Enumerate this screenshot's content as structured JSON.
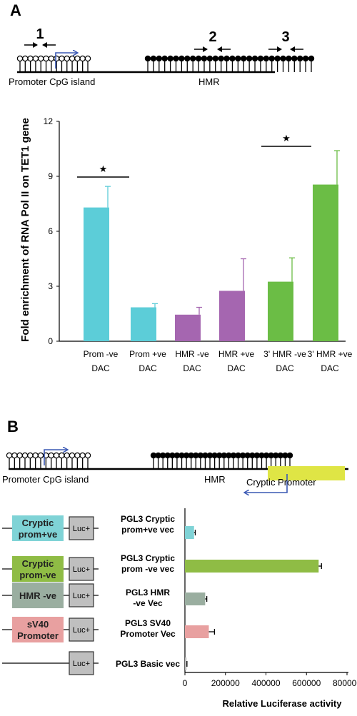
{
  "panel_a": {
    "label": "A",
    "marker_labels": [
      "1",
      "2",
      "3"
    ],
    "promoter_label": "Promoter CpG island",
    "hmr_label": "HMR"
  },
  "panel_b": {
    "label": "B",
    "promoter_label": "Promoter CpG island",
    "hmr_label": "HMR",
    "cryptic_label": "Cryptic Promoter",
    "constructs": [
      {
        "box_lines": [
          "Cryptic",
          "prom+ve"
        ],
        "box_color": "#7fd3d6",
        "name_lines": [
          "PGL3 Cryptic",
          "prom+ve vec"
        ]
      },
      {
        "box_lines": [
          "Cryptic",
          "prom-ve"
        ],
        "box_color": "#8fbc45",
        "name_lines": [
          "PGL3 Cryptic",
          "prom -ve vec"
        ]
      },
      {
        "box_lines": [
          "HMR -ve"
        ],
        "box_color": "#9aaea0",
        "name_lines": [
          "PGL3 HMR",
          "-ve Vec"
        ]
      },
      {
        "box_lines": [
          "sV40",
          "Promoter"
        ],
        "box_color": "#e8a0a0",
        "name_lines": [
          "PGL3 SV40",
          "Promoter Vec"
        ]
      },
      {
        "box_lines": [],
        "box_color": null,
        "name_lines": [
          "PGL3 Basic vec"
        ]
      }
    ],
    "luc_label": "Luc+"
  },
  "colors": {
    "cyan": "#5ccdd8",
    "purple": "#a566b0",
    "green": "#6bbd45",
    "arrow_blue": "#3a58b4",
    "cryptic_yellow": "#dfe545"
  },
  "chart_data": [
    {
      "type": "bar",
      "ylabel": "Fold enrichment of RNA Pol II on TET1 gene",
      "xlabel": "",
      "ylim": [
        0,
        12
      ],
      "yticks": [
        "0",
        "3",
        "6",
        "9",
        "12"
      ],
      "categories": [
        [
          "Prom -ve",
          "DAC"
        ],
        [
          "Prom +ve",
          "DAC"
        ],
        [
          "HMR -ve",
          "DAC"
        ],
        [
          "HMR +ve",
          "DAC"
        ],
        [
          "3' HMR -ve",
          "DAC"
        ],
        [
          "3' HMR +ve",
          "DAC"
        ]
      ],
      "values": [
        7.3,
        1.85,
        1.45,
        2.75,
        3.25,
        8.55
      ],
      "errors": [
        1.15,
        0.2,
        0.4,
        1.75,
        1.3,
        1.85
      ],
      "colors": [
        "#5ccdd8",
        "#5ccdd8",
        "#a566b0",
        "#a566b0",
        "#6bbd45",
        "#6bbd45"
      ],
      "significance": [
        {
          "between": [
            0,
            1
          ],
          "mark": "★"
        },
        {
          "between": [
            4,
            5
          ],
          "mark": "★"
        }
      ],
      "grid": false
    },
    {
      "type": "bar",
      "orientation": "horizontal",
      "xlabel": "Relative Luciferase activity",
      "ylabel": "",
      "xlim": [
        0,
        800000
      ],
      "xticks": [
        "0",
        "200000",
        "400000",
        "600000",
        "800000"
      ],
      "categories": [
        "PGL3 Cryptic prom+ve vec",
        "PGL3 Cryptic prom -ve vec",
        "PGL3 HMR -ve Vec",
        "PGL3 SV40 Promoter Vec",
        "PGL3 Basic vec"
      ],
      "values": [
        45000,
        660000,
        100000,
        118000,
        8000
      ],
      "errors": [
        6000,
        14000,
        8000,
        28000,
        2000
      ],
      "colors": [
        "#7fd3d6",
        "#8fbc45",
        "#9aaea0",
        "#e8a0a0",
        "#bdbdbd"
      ],
      "grid": false
    }
  ]
}
